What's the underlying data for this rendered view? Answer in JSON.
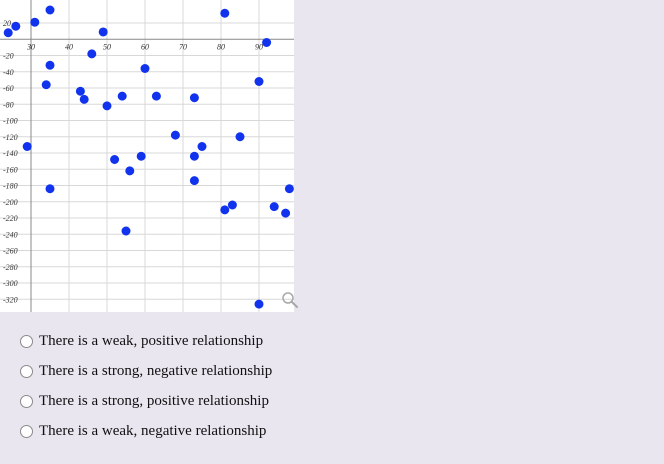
{
  "chart_data": {
    "type": "scatter",
    "title": "",
    "xlabel": "",
    "ylabel": "",
    "xlim": [
      26,
      96
    ],
    "ylim": [
      -330,
      30
    ],
    "x_ticks": [
      30,
      40,
      50,
      60,
      70,
      80,
      90
    ],
    "x_tick_labels": [
      "30",
      "40",
      "50",
      "60",
      "70",
      "80",
      "90"
    ],
    "y_ticks": [
      20,
      -20,
      -40,
      -60,
      -80,
      -100,
      -120,
      -140,
      -160,
      -180,
      -200,
      -220,
      -240,
      -260,
      -280,
      -300,
      -320
    ],
    "y_tick_labels": [
      "20",
      "-20",
      "-40",
      "-60",
      "-80",
      "-100",
      "-120",
      "-140",
      "-160",
      "-180",
      "-200",
      "-220",
      "-240",
      "-260",
      "-280",
      "-300",
      "-320"
    ],
    "grid": true,
    "marker_color": "#1133ee",
    "points": [
      {
        "x": 35,
        "y": 36
      },
      {
        "x": 81,
        "y": 32
      },
      {
        "x": 31,
        "y": 21
      },
      {
        "x": 26,
        "y": 16
      },
      {
        "x": 24,
        "y": 8
      },
      {
        "x": 49,
        "y": 9
      },
      {
        "x": 92,
        "y": -4
      },
      {
        "x": 46,
        "y": -18
      },
      {
        "x": 35,
        "y": -32
      },
      {
        "x": 60,
        "y": -36
      },
      {
        "x": 34,
        "y": -56
      },
      {
        "x": 90,
        "y": -52
      },
      {
        "x": 43,
        "y": -64
      },
      {
        "x": 44,
        "y": -74
      },
      {
        "x": 54,
        "y": -70
      },
      {
        "x": 50,
        "y": -82
      },
      {
        "x": 63,
        "y": -70
      },
      {
        "x": 73,
        "y": -72
      },
      {
        "x": 68,
        "y": -118
      },
      {
        "x": 85,
        "y": -120
      },
      {
        "x": 29,
        "y": -132
      },
      {
        "x": 75,
        "y": -132
      },
      {
        "x": 73,
        "y": -144
      },
      {
        "x": 59,
        "y": -144
      },
      {
        "x": 52,
        "y": -148
      },
      {
        "x": 56,
        "y": -162
      },
      {
        "x": 73,
        "y": -174
      },
      {
        "x": 35,
        "y": -184
      },
      {
        "x": 98,
        "y": -184
      },
      {
        "x": 83,
        "y": -204
      },
      {
        "x": 81,
        "y": -210
      },
      {
        "x": 94,
        "y": -206
      },
      {
        "x": 97,
        "y": -214
      },
      {
        "x": 55,
        "y": -236
      },
      {
        "x": 90,
        "y": -326
      }
    ]
  },
  "icons": {
    "zoom": "zoom-icon"
  },
  "question": {
    "options": [
      {
        "label": "There is a weak, positive relationship"
      },
      {
        "label": "There is a strong, negative relationship"
      },
      {
        "label": "There is a strong, positive relationship"
      },
      {
        "label": "There is a weak, negative relationship"
      }
    ]
  }
}
